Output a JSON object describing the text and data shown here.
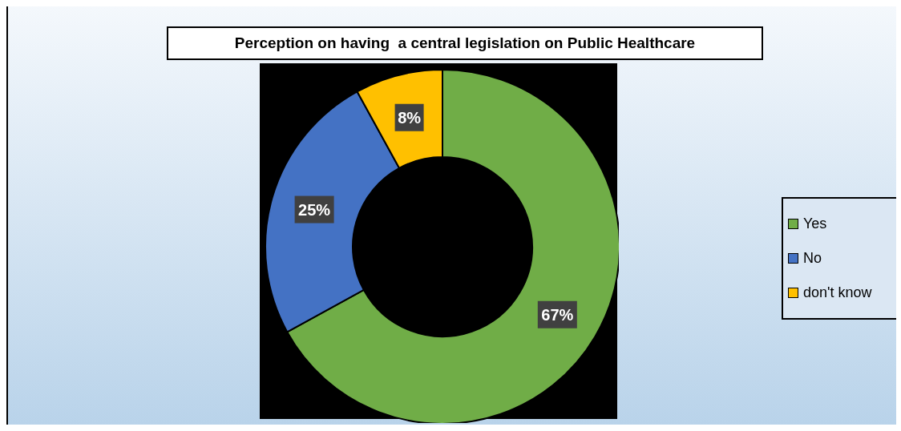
{
  "chart_data": {
    "type": "donut",
    "title": "Perception on having  a central legislation on Public Healthcare",
    "categories": [
      "Yes",
      "No",
      "don't know"
    ],
    "values": [
      67,
      25,
      8
    ],
    "value_labels": [
      "67%",
      "25%",
      "8%"
    ],
    "colors": [
      "#70ad47",
      "#4472c4",
      "#ffc000"
    ],
    "legend": "right"
  }
}
